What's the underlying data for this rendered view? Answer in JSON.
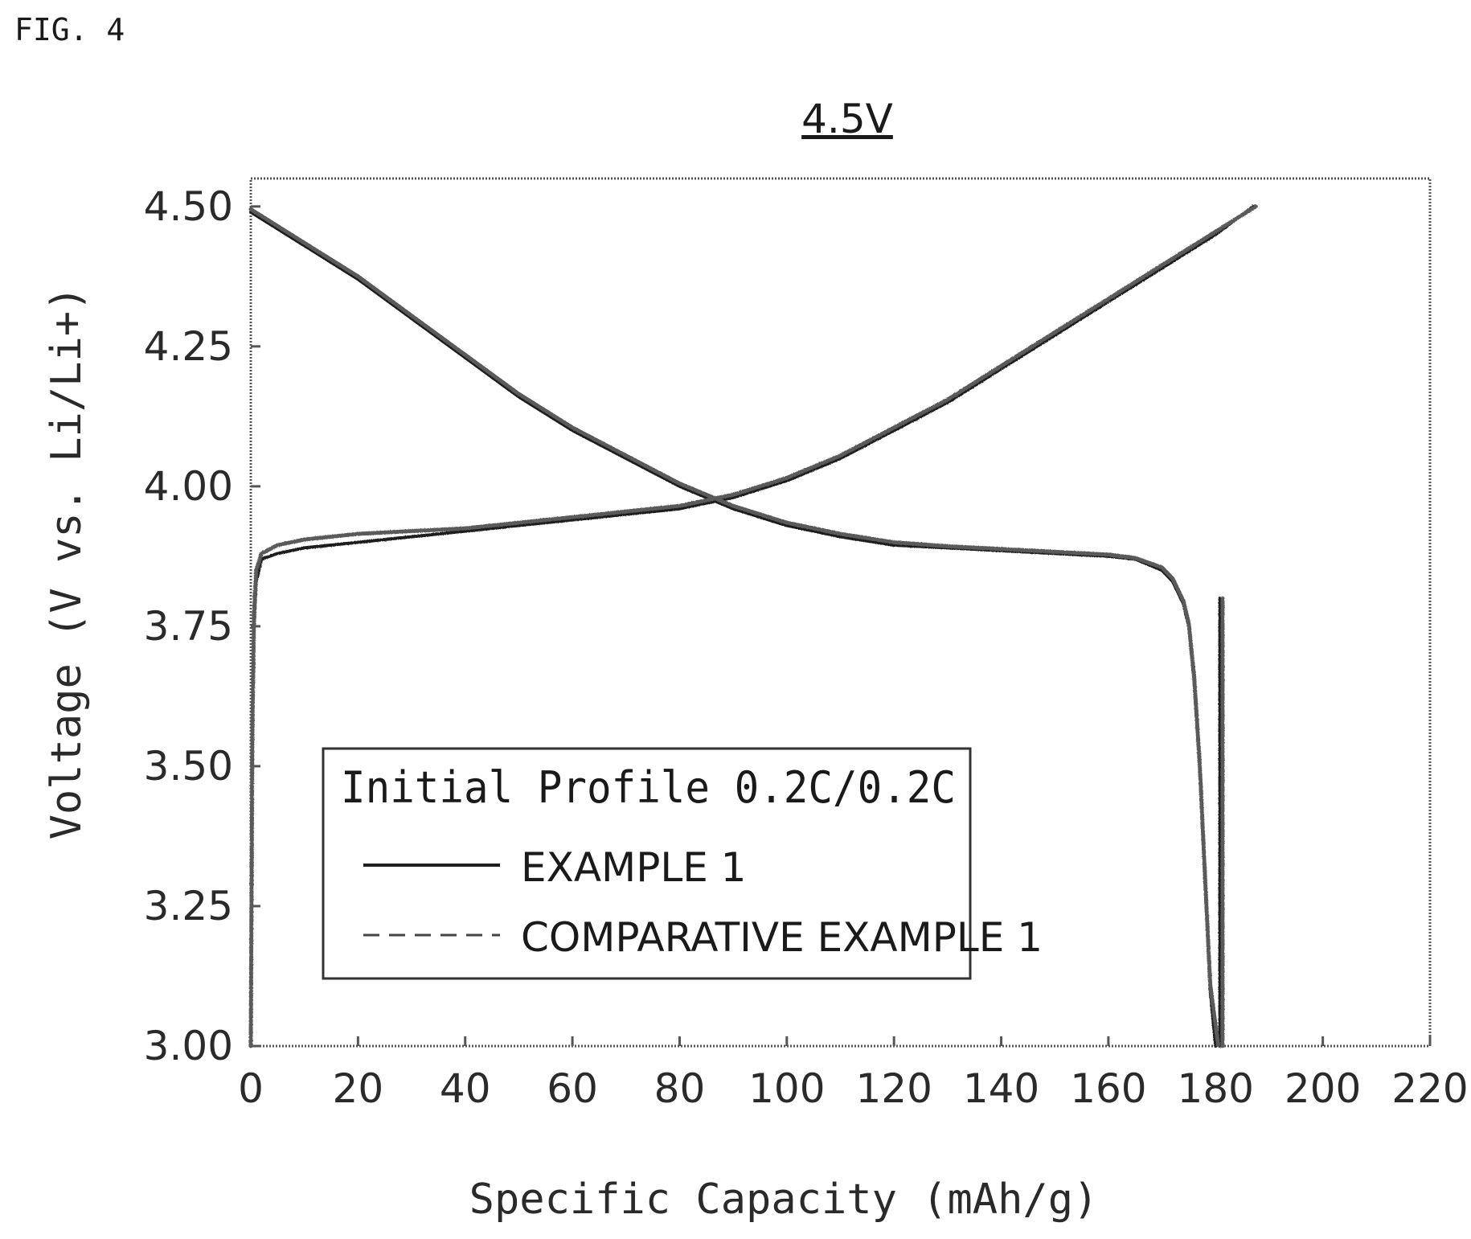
{
  "figure_label": "FIG. 4",
  "chart_data": {
    "type": "line",
    "title": "4.5V",
    "xlabel": "Specific Capacity (mAh/g)",
    "ylabel": "Voltage (V vs. Li/Li+)",
    "xlim": [
      0,
      220
    ],
    "ylim": [
      3.0,
      4.55
    ],
    "x_ticks": [
      0,
      20,
      40,
      60,
      80,
      100,
      120,
      140,
      160,
      180,
      200,
      220
    ],
    "x_tick_labels": [
      "0",
      "20",
      "40",
      "60",
      "80",
      "100",
      "120",
      "140",
      "160",
      "180",
      "200",
      "220"
    ],
    "y_ticks": [
      3.0,
      3.25,
      3.5,
      3.75,
      4.0,
      4.25,
      4.5
    ],
    "y_tick_labels": [
      "3.00",
      "3.25",
      "3.50",
      "3.75",
      "4.00",
      "4.25",
      "4.50"
    ],
    "grid": false,
    "legend": {
      "title": "Initial Profile 0.2C/0.2C",
      "placement": "lower-left",
      "entries": [
        {
          "label": "EXAMPLE 1",
          "style": "solid"
        },
        {
          "label": "COMPARATIVE EXAMPLE 1",
          "style": "dashed"
        }
      ]
    },
    "series": [
      {
        "name": "EXAMPLE 1",
        "style": "solid",
        "charge": {
          "x": [
            0,
            0.3,
            0.6,
            1,
            2,
            5,
            10,
            20,
            40,
            60,
            80,
            90,
            100,
            110,
            120,
            130,
            140,
            150,
            160,
            170,
            180,
            187
          ],
          "y": [
            3.0,
            3.55,
            3.75,
            3.83,
            3.87,
            3.88,
            3.89,
            3.9,
            3.92,
            3.94,
            3.96,
            3.98,
            4.01,
            4.05,
            4.1,
            4.15,
            4.21,
            4.27,
            4.33,
            4.39,
            4.45,
            4.5
          ]
        },
        "discharge": {
          "x": [
            0,
            10,
            20,
            30,
            40,
            50,
            60,
            70,
            80,
            90,
            100,
            110,
            120,
            130,
            140,
            150,
            160,
            165,
            170,
            172,
            174,
            175,
            176,
            177,
            178,
            179,
            180
          ],
          "y": [
            4.49,
            4.43,
            4.37,
            4.3,
            4.23,
            4.16,
            4.1,
            4.05,
            4.0,
            3.96,
            3.93,
            3.91,
            3.895,
            3.89,
            3.885,
            3.88,
            3.875,
            3.87,
            3.85,
            3.83,
            3.79,
            3.75,
            3.65,
            3.5,
            3.3,
            3.1,
            3.0
          ]
        },
        "rest_x": 180.8,
        "rest_y": [
          3.0,
          3.8
        ]
      },
      {
        "name": "COMPARATIVE EXAMPLE 1",
        "style": "dashed",
        "charge": {
          "x": [
            0,
            0.3,
            0.6,
            1,
            2,
            5,
            10,
            20,
            40,
            60,
            80,
            90,
            100,
            110,
            120,
            130,
            140,
            150,
            160,
            170,
            180,
            187.5
          ],
          "y": [
            3.0,
            3.57,
            3.77,
            3.85,
            3.88,
            3.895,
            3.905,
            3.915,
            3.925,
            3.945,
            3.965,
            3.985,
            4.015,
            4.055,
            4.105,
            4.155,
            4.215,
            4.275,
            4.335,
            4.395,
            4.455,
            4.5
          ]
        },
        "discharge": {
          "x": [
            0,
            10,
            20,
            30,
            40,
            50,
            60,
            70,
            80,
            90,
            100,
            110,
            120,
            130,
            140,
            150,
            160,
            165,
            170,
            172,
            174,
            175,
            176,
            177,
            178,
            179,
            180.5
          ],
          "y": [
            4.495,
            4.435,
            4.375,
            4.305,
            4.235,
            4.165,
            4.105,
            4.055,
            4.005,
            3.965,
            3.935,
            3.915,
            3.9,
            3.893,
            3.888,
            3.883,
            3.878,
            3.872,
            3.855,
            3.835,
            3.795,
            3.755,
            3.66,
            3.51,
            3.31,
            3.11,
            3.0
          ]
        },
        "rest_x": 181.3,
        "rest_y": [
          3.0,
          3.8
        ]
      }
    ]
  }
}
